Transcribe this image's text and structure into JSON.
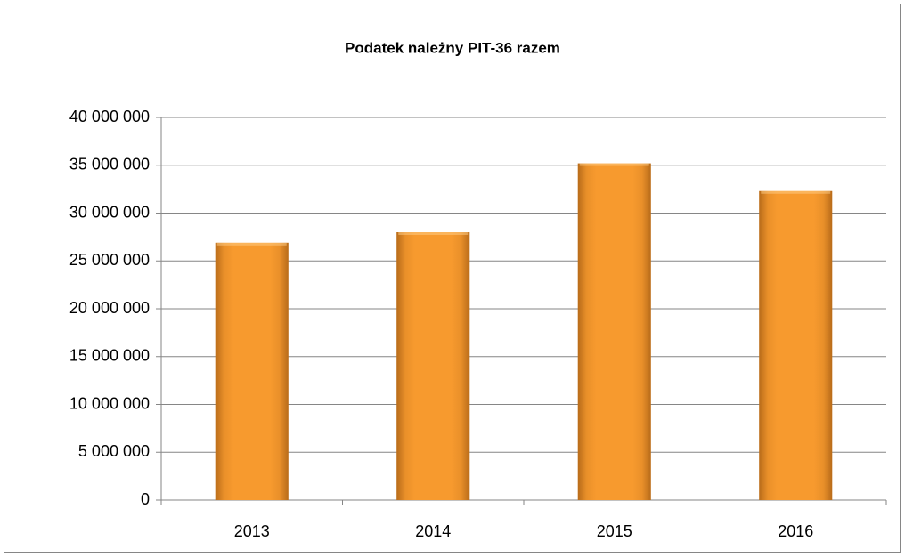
{
  "chart_data": {
    "type": "bar",
    "title": "Podatek należny PIT-36 razem",
    "categories": [
      "2013",
      "2014",
      "2015",
      "2016"
    ],
    "values": [
      26900000,
      28000000,
      35200000,
      32300000
    ],
    "color": "#f79a2e",
    "ylim": [
      0,
      40000000
    ],
    "yticks": [
      0,
      {
        "value": 5000000,
        "label": "5 000 000"
      },
      {
        "value": 10000000,
        "label": "10 000 000"
      },
      {
        "value": 15000000,
        "label": "15 000 000"
      },
      {
        "value": 20000000,
        "label": "20 000 000"
      },
      {
        "value": 25000000,
        "label": "25 000 000"
      },
      {
        "value": 30000000,
        "label": "30 000 000"
      },
      {
        "value": 35000000,
        "label": "35 000 000"
      },
      {
        "value": 40000000,
        "label": "40 000 000"
      }
    ],
    "grid": true
  }
}
